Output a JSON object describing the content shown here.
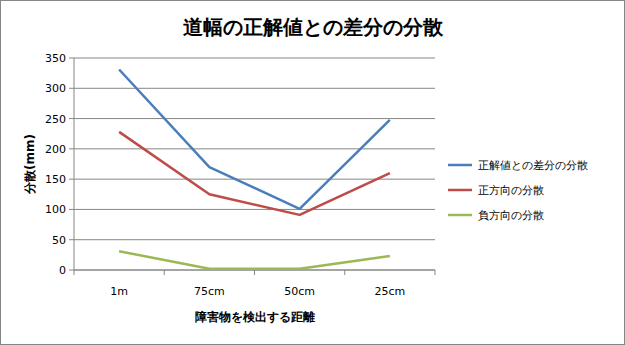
{
  "chart_data": {
    "type": "line",
    "title": "道幅の正解値との差分の分散",
    "x_label": "障害物を検出する距離",
    "y_label": "分散(mm)",
    "categories": [
      "1m",
      "75cm",
      "50cm",
      "25cm"
    ],
    "series": [
      {
        "name": "正解値との差分の分散",
        "color": "#4a7ebb",
        "values": [
          331,
          170,
          101,
          248
        ]
      },
      {
        "name": "正方向の分散",
        "color": "#be4b48",
        "values": [
          228,
          125,
          91,
          160
        ]
      },
      {
        "name": "負方向の分散",
        "color": "#98b954",
        "values": [
          31,
          2,
          2,
          23
        ]
      }
    ],
    "ylim": [
      0,
      350
    ],
    "yticks": [
      0,
      50,
      100,
      150,
      200,
      250,
      300,
      350
    ],
    "grid": true,
    "legend": "right"
  }
}
